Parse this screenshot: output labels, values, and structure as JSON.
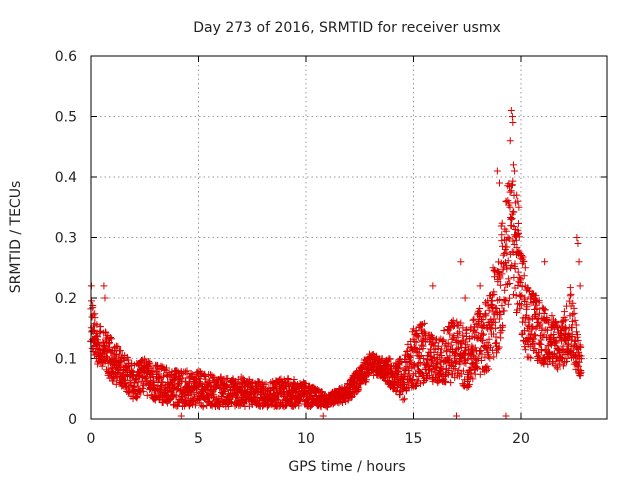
{
  "chart_data": {
    "type": "scatter",
    "title": "Day 273 of 2016, SRMTID for receiver usmx",
    "xlabel": "GPS time / hours",
    "ylabel": "SRMTID / TECUs",
    "xlim": [
      0,
      24
    ],
    "ylim": [
      0,
      0.6
    ],
    "xticks": [
      0,
      5,
      10,
      15,
      20
    ],
    "yticks": [
      0,
      0.1,
      0.2,
      0.3,
      0.4,
      0.5,
      0.6
    ],
    "xtick_labels": [
      "0",
      "5",
      "10",
      "15",
      "20"
    ],
    "ytick_labels": [
      "0",
      "0.1",
      "0.2",
      "0.3",
      "0.4",
      "0.5",
      "0.6"
    ],
    "grid": true,
    "marker": "plus",
    "color": "#dd0000",
    "envelope": [
      {
        "x": 0.0,
        "lo": 0.12,
        "hi": 0.2
      },
      {
        "x": 0.3,
        "lo": 0.09,
        "hi": 0.16
      },
      {
        "x": 0.6,
        "lo": 0.08,
        "hi": 0.15
      },
      {
        "x": 1.0,
        "lo": 0.06,
        "hi": 0.13
      },
      {
        "x": 1.5,
        "lo": 0.05,
        "hi": 0.11
      },
      {
        "x": 2.0,
        "lo": 0.03,
        "hi": 0.09
      },
      {
        "x": 2.5,
        "lo": 0.04,
        "hi": 0.1
      },
      {
        "x": 3.0,
        "lo": 0.03,
        "hi": 0.09
      },
      {
        "x": 4.0,
        "lo": 0.02,
        "hi": 0.08
      },
      {
        "x": 5.0,
        "lo": 0.02,
        "hi": 0.08
      },
      {
        "x": 6.0,
        "lo": 0.02,
        "hi": 0.07
      },
      {
        "x": 7.0,
        "lo": 0.02,
        "hi": 0.07
      },
      {
        "x": 8.0,
        "lo": 0.02,
        "hi": 0.06
      },
      {
        "x": 9.0,
        "lo": 0.02,
        "hi": 0.07
      },
      {
        "x": 10.0,
        "lo": 0.02,
        "hi": 0.06
      },
      {
        "x": 11.0,
        "lo": 0.02,
        "hi": 0.04
      },
      {
        "x": 12.0,
        "lo": 0.03,
        "hi": 0.06
      },
      {
        "x": 12.5,
        "lo": 0.05,
        "hi": 0.09
      },
      {
        "x": 13.0,
        "lo": 0.07,
        "hi": 0.11
      },
      {
        "x": 13.5,
        "lo": 0.07,
        "hi": 0.1
      },
      {
        "x": 14.0,
        "lo": 0.05,
        "hi": 0.1
      },
      {
        "x": 14.5,
        "lo": 0.03,
        "hi": 0.1
      },
      {
        "x": 15.0,
        "lo": 0.05,
        "hi": 0.15
      },
      {
        "x": 15.5,
        "lo": 0.06,
        "hi": 0.16
      },
      {
        "x": 16.0,
        "lo": 0.06,
        "hi": 0.13
      },
      {
        "x": 16.5,
        "lo": 0.06,
        "hi": 0.15
      },
      {
        "x": 17.0,
        "lo": 0.06,
        "hi": 0.17
      },
      {
        "x": 17.5,
        "lo": 0.05,
        "hi": 0.15
      },
      {
        "x": 18.0,
        "lo": 0.07,
        "hi": 0.18
      },
      {
        "x": 18.5,
        "lo": 0.08,
        "hi": 0.2
      },
      {
        "x": 19.0,
        "lo": 0.12,
        "hi": 0.3
      },
      {
        "x": 19.3,
        "lo": 0.18,
        "hi": 0.38
      },
      {
        "x": 19.6,
        "lo": 0.2,
        "hi": 0.42
      },
      {
        "x": 19.9,
        "lo": 0.16,
        "hi": 0.32
      },
      {
        "x": 20.3,
        "lo": 0.1,
        "hi": 0.22
      },
      {
        "x": 20.8,
        "lo": 0.09,
        "hi": 0.2
      },
      {
        "x": 21.3,
        "lo": 0.09,
        "hi": 0.18
      },
      {
        "x": 21.8,
        "lo": 0.08,
        "hi": 0.15
      },
      {
        "x": 22.3,
        "lo": 0.1,
        "hi": 0.22
      },
      {
        "x": 22.8,
        "lo": 0.06,
        "hi": 0.12
      }
    ],
    "outliers": [
      {
        "x": 0.02,
        "y": 0.22
      },
      {
        "x": 0.6,
        "y": 0.22
      },
      {
        "x": 0.65,
        "y": 0.2
      },
      {
        "x": 15.9,
        "y": 0.22
      },
      {
        "x": 17.2,
        "y": 0.26
      },
      {
        "x": 17.4,
        "y": 0.2
      },
      {
        "x": 18.1,
        "y": 0.22
      },
      {
        "x": 18.7,
        "y": 0.25
      },
      {
        "x": 18.9,
        "y": 0.41
      },
      {
        "x": 19.0,
        "y": 0.39
      },
      {
        "x": 19.3,
        "y": 0.36
      },
      {
        "x": 19.5,
        "y": 0.46
      },
      {
        "x": 19.55,
        "y": 0.51
      },
      {
        "x": 19.6,
        "y": 0.5
      },
      {
        "x": 19.62,
        "y": 0.49
      },
      {
        "x": 19.65,
        "y": 0.42
      },
      {
        "x": 19.7,
        "y": 0.41
      },
      {
        "x": 19.8,
        "y": 0.37
      },
      {
        "x": 19.85,
        "y": 0.36
      },
      {
        "x": 19.9,
        "y": 0.35
      },
      {
        "x": 20.2,
        "y": 0.25
      },
      {
        "x": 21.1,
        "y": 0.26
      },
      {
        "x": 22.6,
        "y": 0.3
      },
      {
        "x": 22.65,
        "y": 0.29
      },
      {
        "x": 22.7,
        "y": 0.26
      },
      {
        "x": 22.75,
        "y": 0.22
      },
      {
        "x": 4.2,
        "y": 0.005
      },
      {
        "x": 10.8,
        "y": 0.005
      },
      {
        "x": 17.0,
        "y": 0.005
      },
      {
        "x": 19.3,
        "y": 0.005
      }
    ]
  }
}
